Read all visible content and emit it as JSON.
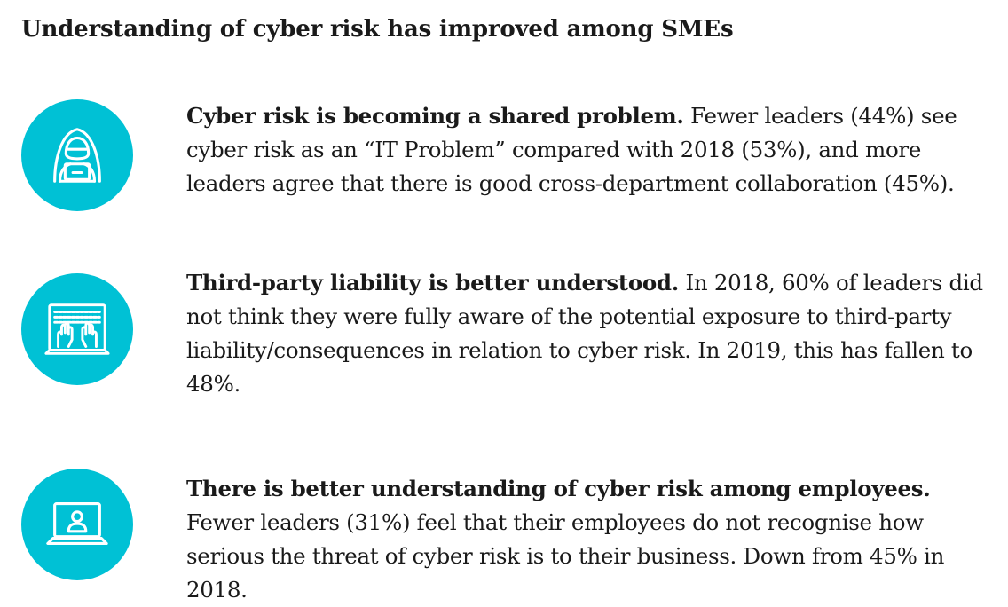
{
  "title": "Understanding of cyber risk has improved among SMEs",
  "colors": {
    "icon_circle": "#00c1d5",
    "icon_stroke": "#ffffff",
    "text": "#1a1a1a"
  },
  "items": [
    {
      "icon": "hooded-hacker-laptop-icon",
      "lead": "Cyber risk is becoming a shared problem.",
      "body": " Fewer leaders (44%) see cyber risk as an “IT Problem” compared with 2018 (53%), and more leaders agree that there is good cross-department collaboration (45%)."
    },
    {
      "icon": "hands-on-keyboard-icon",
      "lead": "Third-party liability is better understood.",
      "body": " In 2018, 60% of leaders did not think they were fully aware of the potential exposure to third-party liability/consequences in relation to cyber risk. In 2019, this has fallen to 48%."
    },
    {
      "icon": "user-on-laptop-icon",
      "lead": "There is better understanding of cyber risk among employees.",
      "body": " Fewer leaders (31%) feel that their employees do not recognise how serious the threat of cyber risk is to their business. Down from 45% in 2018."
    }
  ]
}
